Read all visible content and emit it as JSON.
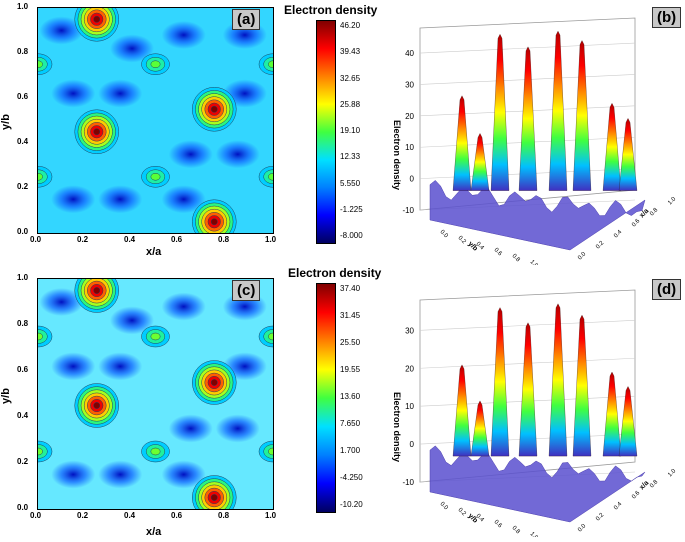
{
  "chart_data": [
    {
      "id": "a",
      "type": "heatmap",
      "panel_label": "(a)",
      "xlabel": "x/a",
      "ylabel": "y/b",
      "xlim": [
        0,
        1
      ],
      "ylim": [
        0,
        1
      ],
      "x_ticks": [
        "0.0",
        "0.2",
        "0.4",
        "0.6",
        "0.8",
        "1.0"
      ],
      "y_ticks": [
        "0.0",
        "0.2",
        "0.4",
        "0.6",
        "0.8",
        "1.0"
      ],
      "colorbar_title": "Electron density",
      "colorbar_ticks": [
        "46.20",
        "39.43",
        "32.65",
        "25.88",
        "19.10",
        "12.33",
        "5.550",
        "-1.225",
        "-8.000"
      ],
      "colorbar_range": [
        -8.0,
        46.2
      ],
      "peaks": [
        {
          "x": 0.25,
          "y": 0.95,
          "value": 46.2
        },
        {
          "x": 0.25,
          "y": 0.45,
          "value": 46.2
        },
        {
          "x": 0.75,
          "y": 0.55,
          "value": 46.2
        },
        {
          "x": 0.75,
          "y": 0.05,
          "value": 46.2
        },
        {
          "x": 0.5,
          "y": 0.75,
          "value": 20
        },
        {
          "x": 0.0,
          "y": 0.75,
          "value": 20
        },
        {
          "x": 1.0,
          "y": 0.75,
          "value": 20
        },
        {
          "x": 0.5,
          "y": 0.25,
          "value": 20
        },
        {
          "x": 0.0,
          "y": 0.25,
          "value": 20
        },
        {
          "x": 1.0,
          "y": 0.25,
          "value": 20
        }
      ]
    },
    {
      "id": "b",
      "type": "surface3d",
      "panel_label": "(b)",
      "zlabel": "Electron density",
      "xlabel": "x/a",
      "ylabel": "y/b",
      "z_ticks": [
        "-10",
        "0",
        "10",
        "20",
        "30",
        "40"
      ],
      "zlim": [
        -10,
        48
      ],
      "xy_ticks": [
        "0.0",
        "0.2",
        "0.4",
        "0.6",
        "0.8",
        "1.0"
      ]
    },
    {
      "id": "c",
      "type": "heatmap",
      "panel_label": "(c)",
      "xlabel": "x/a",
      "ylabel": "y/b",
      "xlim": [
        0,
        1
      ],
      "ylim": [
        0,
        1
      ],
      "x_ticks": [
        "0.0",
        "0.2",
        "0.4",
        "0.6",
        "0.8",
        "1.0"
      ],
      "y_ticks": [
        "0.0",
        "0.2",
        "0.4",
        "0.6",
        "0.8",
        "1.0"
      ],
      "colorbar_title": "Electron density",
      "colorbar_ticks": [
        "37.40",
        "31.45",
        "25.50",
        "19.55",
        "13.60",
        "7.650",
        "1.700",
        "-4.250",
        "-10.20"
      ],
      "colorbar_range": [
        -10.2,
        37.4
      ],
      "peaks": [
        {
          "x": 0.25,
          "y": 0.95,
          "value": 37.4
        },
        {
          "x": 0.25,
          "y": 0.45,
          "value": 37.4
        },
        {
          "x": 0.75,
          "y": 0.55,
          "value": 37.4
        },
        {
          "x": 0.75,
          "y": 0.05,
          "value": 37.4
        },
        {
          "x": 0.5,
          "y": 0.75,
          "value": 15
        },
        {
          "x": 0.0,
          "y": 0.75,
          "value": 15
        },
        {
          "x": 1.0,
          "y": 0.75,
          "value": 15
        },
        {
          "x": 0.5,
          "y": 0.25,
          "value": 15
        },
        {
          "x": 0.0,
          "y": 0.25,
          "value": 15
        },
        {
          "x": 1.0,
          "y": 0.25,
          "value": 15
        }
      ]
    },
    {
      "id": "d",
      "type": "surface3d",
      "panel_label": "(d)",
      "zlabel": "Electron density",
      "xlabel": "x/a",
      "ylabel": "y/b",
      "z_ticks": [
        "-10",
        "0",
        "10",
        "20",
        "30"
      ],
      "zlim": [
        -10,
        38
      ],
      "xy_ticks": [
        "0.0",
        "0.2",
        "0.4",
        "0.6",
        "0.8",
        "1.0"
      ]
    }
  ],
  "colors": {
    "colormap": [
      "#000060",
      "#0000ff",
      "#0080ff",
      "#00e0ff",
      "#40ff40",
      "#ffff00",
      "#ff8000",
      "#ff0000",
      "#800000"
    ]
  }
}
